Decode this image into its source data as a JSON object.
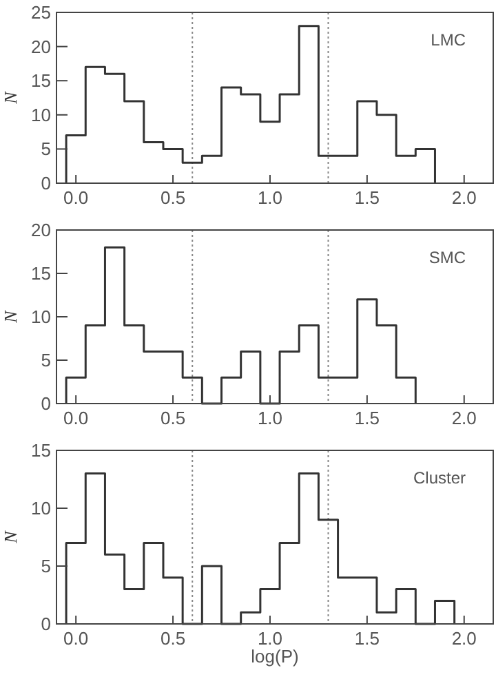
{
  "chart_data": [
    {
      "type": "histogram",
      "ylabel": "N",
      "annotations": [
        "LMC"
      ],
      "bins": [
        -0.05,
        0.05,
        0.15,
        0.25,
        0.35,
        0.45,
        0.55,
        0.65,
        0.75,
        0.85,
        0.95,
        1.05,
        1.15,
        1.25,
        1.35,
        1.45,
        1.55,
        1.65,
        1.75,
        1.85
      ],
      "values": [
        7,
        17,
        16,
        12,
        6,
        5,
        3,
        4,
        14,
        13,
        9,
        13,
        23,
        4,
        4,
        12,
        10,
        4,
        5
      ],
      "color": "#333333",
      "xlim": [
        -0.1,
        2.15
      ],
      "xticks": [
        {
          "value": 0,
          "label": "0.0"
        },
        {
          "value": 0.5,
          "label": "0.5"
        },
        {
          "value": 1,
          "label": "1.0"
        },
        {
          "value": 1.5,
          "label": "1.5"
        },
        {
          "value": 2,
          "label": "2.0"
        }
      ],
      "ylim": [
        0,
        25
      ],
      "yticks": [
        0,
        5,
        10,
        15,
        20,
        25
      ],
      "ref_lines": [
        {
          "axis": "x",
          "value": 0.6,
          "line_style": "dotted",
          "color": "#888888"
        },
        {
          "axis": "x",
          "value": 1.3,
          "line_style": "dotted",
          "color": "#888888"
        }
      ]
    },
    {
      "type": "histogram",
      "ylabel": "N",
      "annotations": [
        "SMC"
      ],
      "bins": [
        -0.05,
        0.05,
        0.15,
        0.25,
        0.35,
        0.45,
        0.55,
        0.65,
        0.75,
        0.85,
        0.95,
        1.05,
        1.15,
        1.25,
        1.35,
        1.45,
        1.55,
        1.65,
        1.75
      ],
      "values": [
        3,
        9,
        18,
        9,
        6,
        6,
        3,
        0,
        3,
        6,
        0,
        6,
        9,
        3,
        3,
        12,
        9,
        3
      ],
      "color": "#333333",
      "xlim": [
        -0.1,
        2.15
      ],
      "xticks": [
        {
          "value": 0,
          "label": "0.0"
        },
        {
          "value": 0.5,
          "label": "0.5"
        },
        {
          "value": 1,
          "label": "1.0"
        },
        {
          "value": 1.5,
          "label": "1.5"
        },
        {
          "value": 2,
          "label": "2.0"
        }
      ],
      "ylim": [
        0,
        20
      ],
      "yticks": [
        0,
        5,
        10,
        15,
        20
      ],
      "ref_lines": [
        {
          "axis": "x",
          "value": 0.6,
          "line_style": "dotted",
          "color": "#888888"
        },
        {
          "axis": "x",
          "value": 1.3,
          "line_style": "dotted",
          "color": "#888888"
        }
      ]
    },
    {
      "type": "histogram",
      "xlabel": "log(P)",
      "ylabel": "N",
      "annotations": [
        "Cluster"
      ],
      "bins": [
        -0.05,
        0.05,
        0.15,
        0.25,
        0.35,
        0.45,
        0.55,
        0.65,
        0.75,
        0.85,
        0.95,
        1.05,
        1.15,
        1.25,
        1.35,
        1.45,
        1.55,
        1.65,
        1.75,
        1.85,
        1.95
      ],
      "values": [
        7,
        13,
        6,
        3,
        7,
        4,
        0,
        5,
        0,
        1,
        3,
        7,
        13,
        9,
        4,
        4,
        1,
        3,
        0,
        2
      ],
      "color": "#333333",
      "xlim": [
        -0.1,
        2.15
      ],
      "xticks": [
        {
          "value": 0,
          "label": "0.0"
        },
        {
          "value": 0.5,
          "label": "0.5"
        },
        {
          "value": 1,
          "label": "1.0"
        },
        {
          "value": 1.5,
          "label": "1.5"
        },
        {
          "value": 2,
          "label": "2.0"
        }
      ],
      "ylim": [
        0,
        15
      ],
      "yticks": [
        0,
        5,
        10,
        15
      ],
      "ref_lines": [
        {
          "axis": "x",
          "value": 0.6,
          "line_style": "dotted",
          "color": "#888888"
        },
        {
          "axis": "x",
          "value": 1.3,
          "line_style": "dotted",
          "color": "#888888"
        }
      ]
    }
  ]
}
